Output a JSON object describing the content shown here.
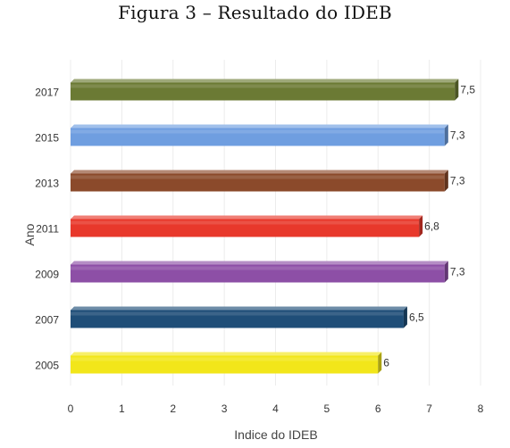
{
  "figure": {
    "caption": "Figura 3 – Resultado do IDEB"
  },
  "chart_data": {
    "type": "bar",
    "orientation": "horizontal",
    "title": "",
    "xlabel": "Indice do IDEB",
    "ylabel": "Ano",
    "xlim": [
      0,
      8
    ],
    "xticks": [
      0,
      1,
      2,
      3,
      4,
      5,
      6,
      7,
      8
    ],
    "grid": true,
    "legend": "none",
    "categories": [
      "2017",
      "2015",
      "2013",
      "2011",
      "2009",
      "2007",
      "2005"
    ],
    "values": [
      7.5,
      7.3,
      7.3,
      6.8,
      7.3,
      6.5,
      6
    ],
    "value_labels": [
      "7,5",
      "7,3",
      "7,3",
      "6,8",
      "7,3",
      "6,5",
      "6"
    ],
    "colors": [
      "#6b7a34",
      "#6f9ee0",
      "#8b4a2b",
      "#e8382b",
      "#8d4fa6",
      "#1f4e78",
      "#f2e61a"
    ]
  }
}
